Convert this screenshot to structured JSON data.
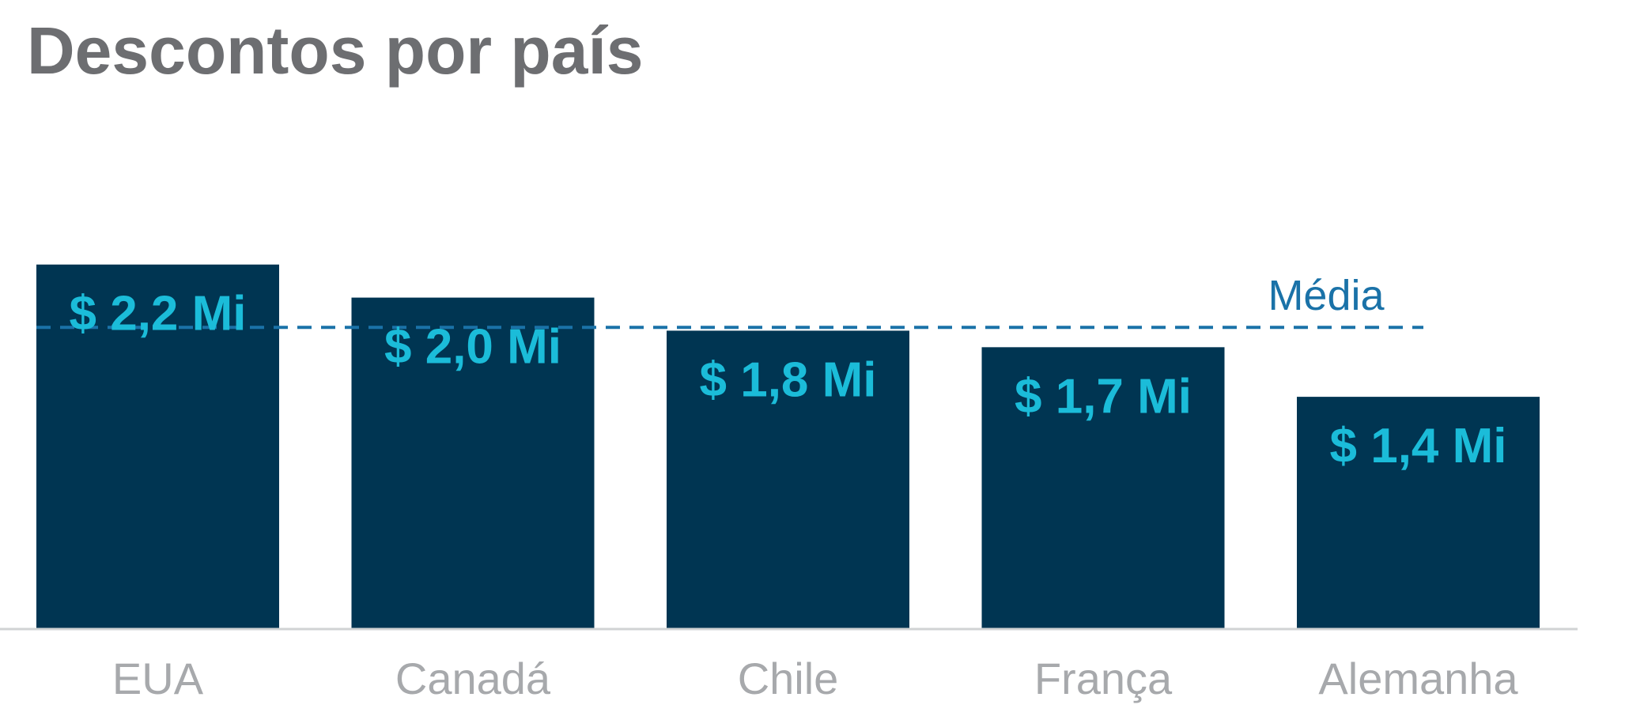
{
  "chart_data": {
    "type": "bar",
    "title": "Descontos por país",
    "categories": [
      "EUA",
      "Canadá",
      "Chile",
      "França",
      "Alemanha"
    ],
    "values": [
      2.2,
      2.0,
      1.8,
      1.7,
      1.4
    ],
    "data_labels": [
      "$ 2,2 Mi",
      "$ 2,0 Mi",
      "$ 1,8 Mi",
      "$ 1,7 Mi",
      "$ 1,4 Mi"
    ],
    "unit": "Mi",
    "average": {
      "label": "Média",
      "value": 1.82
    },
    "xlabel": "",
    "ylabel": "",
    "ylim": [
      0,
      3.8
    ],
    "grid": false,
    "legend": "none"
  },
  "colors": {
    "bar": "#003552",
    "data_label": "#1bbcd9",
    "average_line": "#1a72a8",
    "title": "#6d6e71",
    "category_label": "#a7a9ac",
    "axis": "#d1d3d4"
  }
}
